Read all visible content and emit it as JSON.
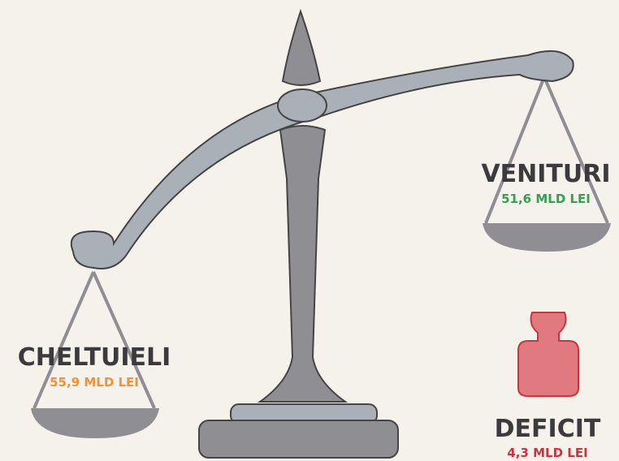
{
  "items": [
    {
      "label": "CHELTUIELI",
      "value": "55,9 MLD LEI"
    },
    {
      "label": "VENITURI",
      "value": "51,6 MLD LEI"
    },
    {
      "label": "DEFICIT",
      "value": "4,3 MLD LEI"
    }
  ]
}
